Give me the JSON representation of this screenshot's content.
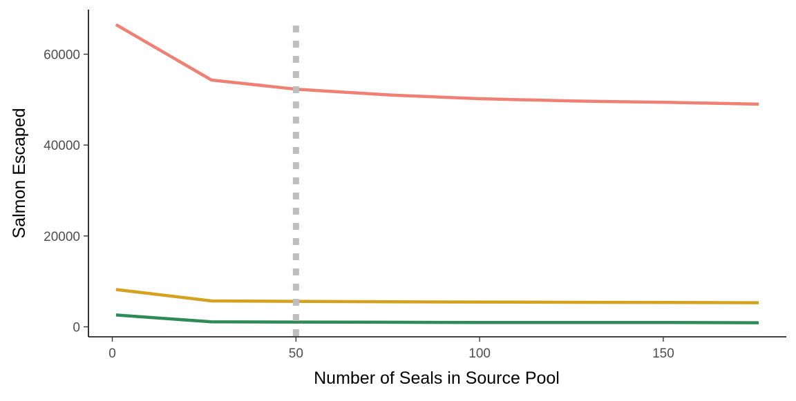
{
  "chart_data": {
    "type": "line",
    "title": "",
    "xlabel": "Number of Seals in Source Pool",
    "ylabel": "Salmon Escaped",
    "xlim": [
      -6.5,
      183.5
    ],
    "ylim": [
      -2200,
      69800
    ],
    "x_ticks": [
      0,
      50,
      100,
      150
    ],
    "y_ticks": [
      0,
      20000,
      40000,
      60000
    ],
    "grid": false,
    "legend": "none",
    "reference_line": {
      "x": 50,
      "style": "dotted",
      "color": "#bebebe"
    },
    "series": [
      {
        "color": "#f08073",
        "points": [
          [
            1,
            66500
          ],
          [
            27,
            54300
          ],
          [
            50,
            52300
          ],
          [
            76,
            51000
          ],
          [
            100,
            50200
          ],
          [
            125,
            49700
          ],
          [
            151,
            49400
          ],
          [
            176,
            49000
          ]
        ]
      },
      {
        "color": "#d4a21e",
        "points": [
          [
            1,
            8200
          ],
          [
            27,
            5700
          ],
          [
            50,
            5600
          ],
          [
            76,
            5500
          ],
          [
            100,
            5450
          ],
          [
            125,
            5400
          ],
          [
            151,
            5350
          ],
          [
            176,
            5300
          ]
        ]
      },
      {
        "color": "#2e8b57",
        "points": [
          [
            1,
            2600
          ],
          [
            27,
            1100
          ],
          [
            50,
            1050
          ],
          [
            76,
            1000
          ],
          [
            100,
            950
          ],
          [
            125,
            950
          ],
          [
            151,
            950
          ],
          [
            176,
            900
          ]
        ]
      }
    ]
  }
}
